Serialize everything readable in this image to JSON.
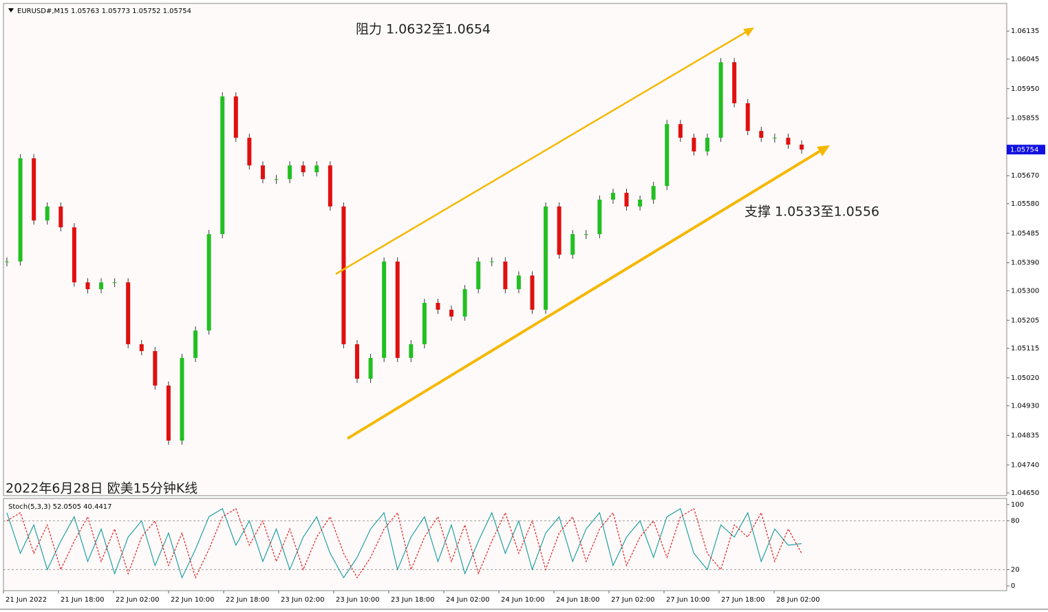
{
  "chart_data": [
    {
      "type": "candlestick",
      "title": "EURUSD#,M15  1.05763 1.05773 1.05752 1.05754",
      "annotations": [
        "阻力 1.0632至1.0654",
        "支撑 1.0533至1.0556",
        "2022年6月28日 欧美15分钟K线"
      ],
      "current_price": 1.05754,
      "time_labels": [
        "21 Jun 2022",
        "21 Jun 18:00",
        "22 Jun 02:00",
        "22 Jun 10:00",
        "22 Jun 18:00",
        "23 Jun 02:00",
        "23 Jun 10:00",
        "23 Jun 18:00",
        "24 Jun 02:00",
        "24 Jun 10:00",
        "24 Jun 18:00",
        "27 Jun 02:00",
        "27 Jun 10:00",
        "27 Jun 18:00",
        "28 Jun 02:00"
      ],
      "values": [
        1.05394,
        1.05726,
        1.05526,
        1.05571,
        1.05504,
        1.05327,
        1.05305,
        1.05327,
        1.05327,
        1.05128,
        1.05106,
        1.04995,
        1.04818,
        1.05084,
        1.05172,
        1.05482,
        1.05925,
        1.05792,
        1.05703,
        1.05659,
        1.05659,
        1.05703,
        1.05681,
        1.05703,
        1.05571,
        1.05128,
        1.05017,
        1.05084,
        1.05394,
        1.05084,
        1.05128,
        1.05261,
        1.05239,
        1.05217,
        1.05305,
        1.05394,
        1.05394,
        1.05305,
        1.05349,
        1.05239,
        1.05571,
        1.05416,
        1.05482,
        1.05482,
        1.05593,
        1.05615,
        1.05571,
        1.05593,
        1.05637,
        1.05836,
        1.05792,
        1.05748,
        1.05792,
        1.06035,
        1.05903,
        1.05814,
        1.05792,
        1.05792,
        1.0577,
        1.05754
      ],
      "up_color": "#22c022",
      "down_color": "#e01010",
      "ylim": [
        1.04641,
        1.06224
      ],
      "yticks": [
        1.06135,
        1.06045,
        {
          "value": 1.0595,
          "label": "1.05950"
        },
        1.05855,
        {
          "value": 1.0567,
          "label": "1.05670"
        },
        {
          "value": 1.0558,
          "label": "1.05580"
        },
        1.05485,
        {
          "value": 1.0539,
          "label": "1.05390"
        },
        {
          "value": 1.053,
          "label": "1.05300"
        },
        1.05205,
        1.05115,
        {
          "value": 1.0502,
          "label": "1.05020"
        },
        {
          "value": 1.0493,
          "label": "1.04930"
        },
        1.04835,
        {
          "value": 1.0474,
          "label": "1.04740"
        },
        {
          "value": 1.0465,
          "label": "1.04650"
        }
      ]
    },
    {
      "type": "line",
      "title": "Stoch(5,3,3) 52.0505 40.4417",
      "series": [
        {
          "color": "#20a0a0",
          "values": [
            90,
            40,
            75,
            20,
            55,
            85,
            30,
            70,
            15,
            60,
            80,
            25,
            65,
            10,
            45,
            85,
            95,
            50,
            80,
            30,
            70,
            20,
            60,
            85,
            40,
            10,
            35,
            70,
            90,
            20,
            60,
            85,
            30,
            75,
            15,
            55,
            90,
            40,
            80,
            20,
            65,
            85,
            30,
            70,
            90,
            25,
            60,
            80,
            35,
            85,
            95,
            40,
            20,
            75,
            60,
            90,
            30,
            70,
            50,
            52
          ]
        },
        {
          "color": "#e02020",
          "values": [
            80,
            90,
            40,
            75,
            20,
            55,
            85,
            30,
            70,
            15,
            60,
            80,
            25,
            65,
            10,
            45,
            85,
            95,
            50,
            80,
            30,
            70,
            20,
            60,
            85,
            40,
            10,
            35,
            70,
            90,
            20,
            60,
            85,
            30,
            75,
            15,
            55,
            90,
            40,
            80,
            20,
            65,
            85,
            30,
            70,
            90,
            25,
            60,
            80,
            35,
            85,
            95,
            40,
            20,
            75,
            60,
            90,
            30,
            70,
            40
          ]
        }
      ],
      "ylim": [
        -5.9,
        107.6
      ],
      "yticks": [
        100,
        80,
        20,
        0
      ],
      "grid_levels": [
        80,
        20
      ]
    }
  ]
}
